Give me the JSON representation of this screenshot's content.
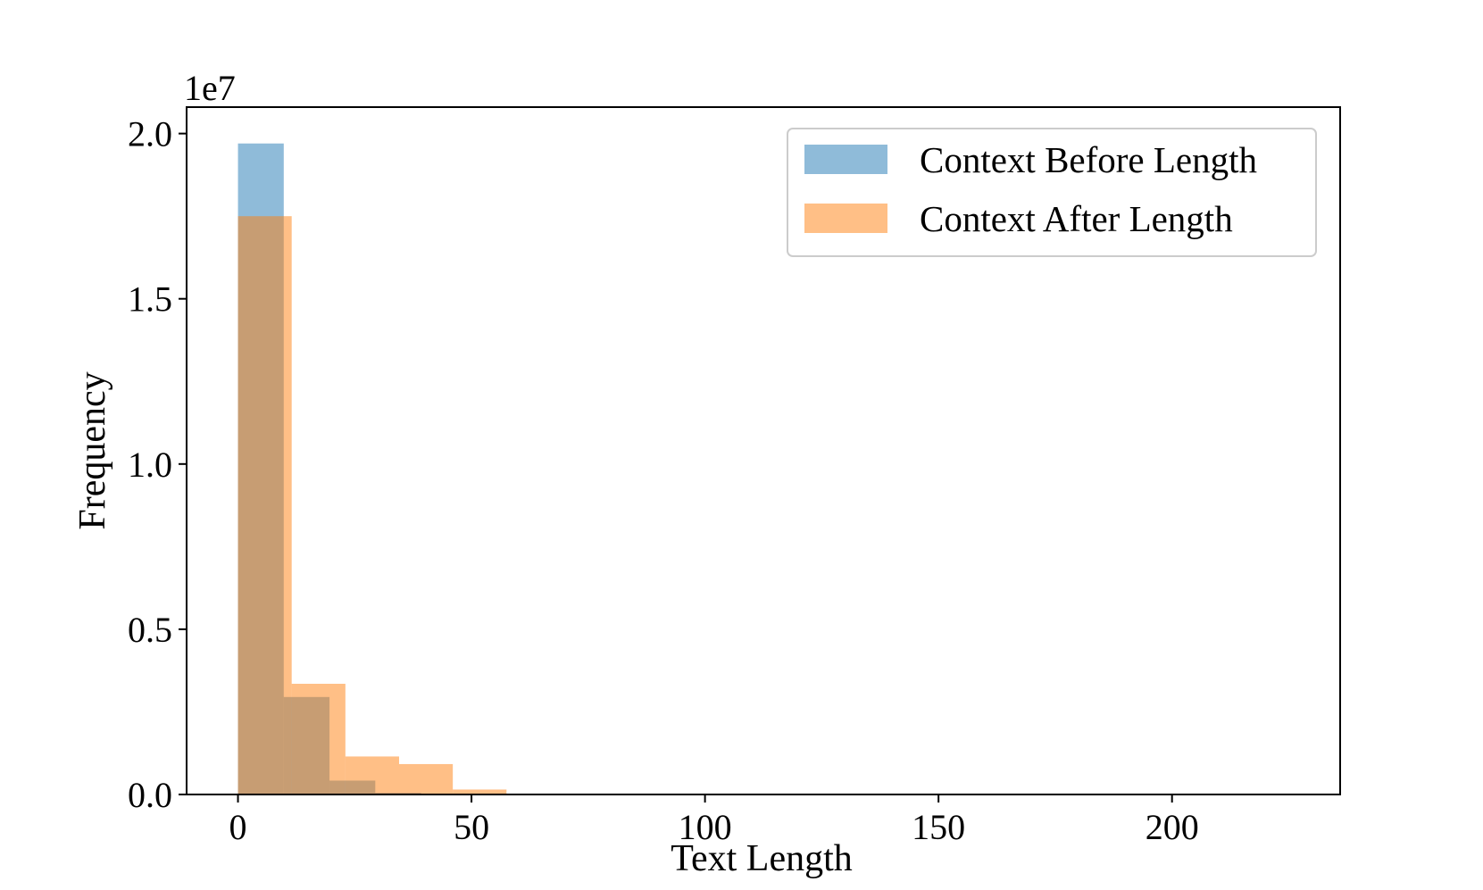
{
  "chart_data": {
    "type": "bar",
    "subtype": "histogram",
    "title": "",
    "xlabel": "Text Length",
    "ylabel": "Frequency",
    "y_offset_label": "1e7",
    "y_scale": 10000000,
    "xlim": [
      -11,
      236
    ],
    "ylim": [
      0,
      20.8
    ],
    "grid": false,
    "legend_position": "top-right",
    "x_ticks": [
      0,
      50,
      100,
      150,
      200
    ],
    "x_tick_labels": [
      "0",
      "50",
      "100",
      "150",
      "200"
    ],
    "y_ticks": [
      0,
      5,
      10,
      15,
      20
    ],
    "y_tick_labels": [
      "0.0",
      "0.5",
      "1.0",
      "1.5",
      "2.0"
    ],
    "series": [
      {
        "name": "Context Before Length",
        "color": "#1f77b4",
        "alpha": 0.5,
        "bins": [
          {
            "x0": 0,
            "x1": 9.8,
            "value": 19.7
          },
          {
            "x0": 9.8,
            "x1": 19.6,
            "value": 2.95
          },
          {
            "x0": 19.6,
            "x1": 29.4,
            "value": 0.42
          },
          {
            "x0": 29.4,
            "x1": 39.2,
            "value": 0.05
          }
        ]
      },
      {
        "name": "Context After Length",
        "color": "#ff7f0e",
        "alpha": 0.5,
        "bins": [
          {
            "x0": 0,
            "x1": 11.5,
            "value": 17.5
          },
          {
            "x0": 11.5,
            "x1": 23,
            "value": 3.35
          },
          {
            "x0": 23,
            "x1": 34.5,
            "value": 1.15
          },
          {
            "x0": 34.5,
            "x1": 46,
            "value": 0.92
          },
          {
            "x0": 46,
            "x1": 57.5,
            "value": 0.15
          }
        ]
      }
    ]
  }
}
